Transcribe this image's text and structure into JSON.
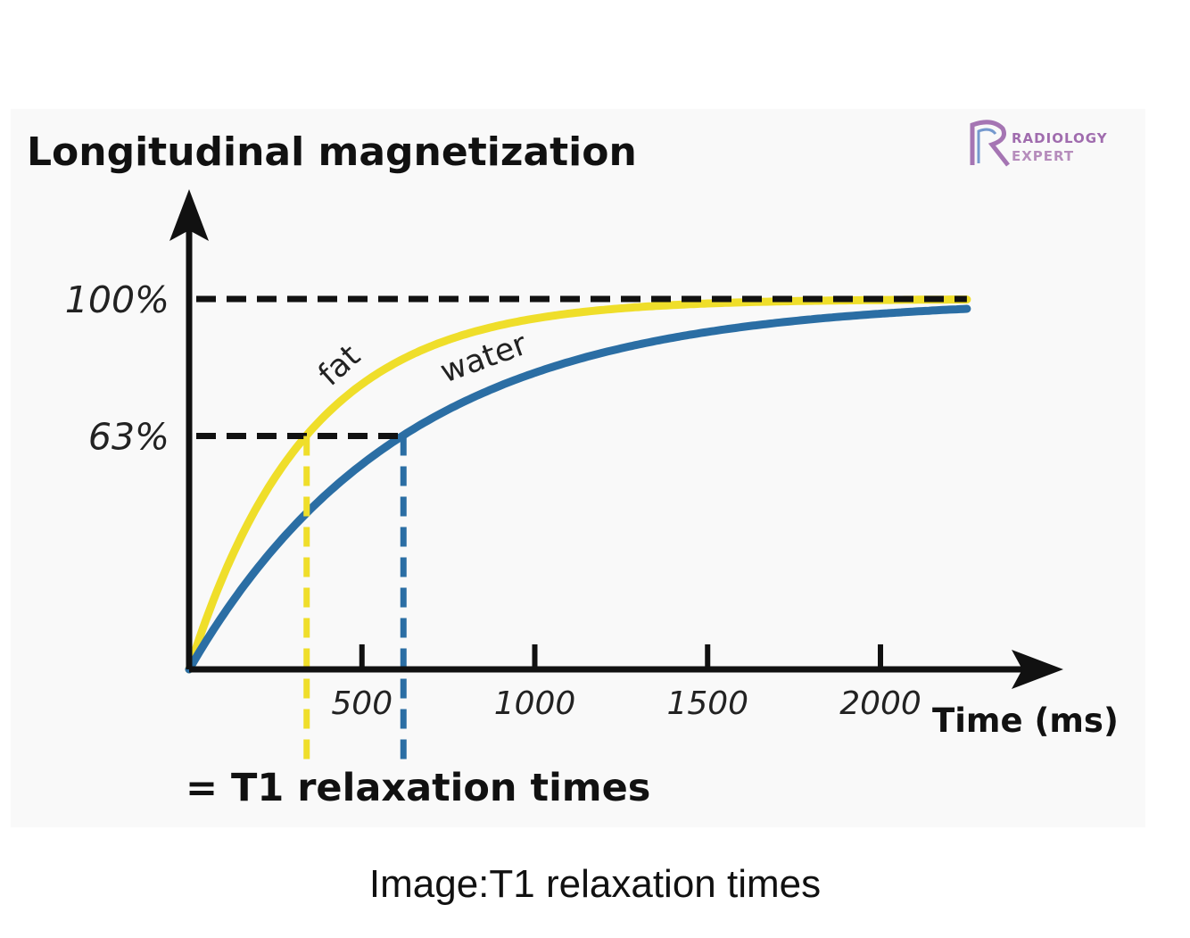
{
  "chart_data": {
    "type": "line",
    "title": "Longitudinal magnetization",
    "xlabel": "Time (ms)",
    "ylabel": "Longitudinal magnetization",
    "xlim": [
      0,
      2250
    ],
    "ylim": [
      0,
      100
    ],
    "x_ticks": [
      500,
      1000,
      1500,
      2000
    ],
    "x_tick_labels": [
      "500",
      "1000",
      "1500",
      "2000"
    ],
    "y_ticks": [
      63,
      100
    ],
    "y_tick_labels": [
      "63%",
      "100%"
    ],
    "series": [
      {
        "name": "fat",
        "t1": 340,
        "color": "#efde2a"
      },
      {
        "name": "water",
        "t1": 620,
        "color": "#2b6ea4"
      }
    ],
    "reference_lines": [
      {
        "axis": "y",
        "value": 100,
        "style": "dashed",
        "color": "#111111"
      },
      {
        "axis": "y",
        "value": 63,
        "style": "dashed",
        "color": "#111111"
      },
      {
        "axis": "x",
        "value": 340,
        "style": "dashed",
        "color": "#efde2a"
      },
      {
        "axis": "x",
        "value": 620,
        "style": "dashed",
        "color": "#2b6ea4"
      }
    ],
    "annotation": "= T1 relaxation times",
    "grid": false,
    "legend": "inline"
  },
  "logo": {
    "line1": "RADIOLOGY",
    "line2": "EXPERT",
    "color": "#8a4a9c"
  },
  "caption": "Image:T1 relaxation times"
}
